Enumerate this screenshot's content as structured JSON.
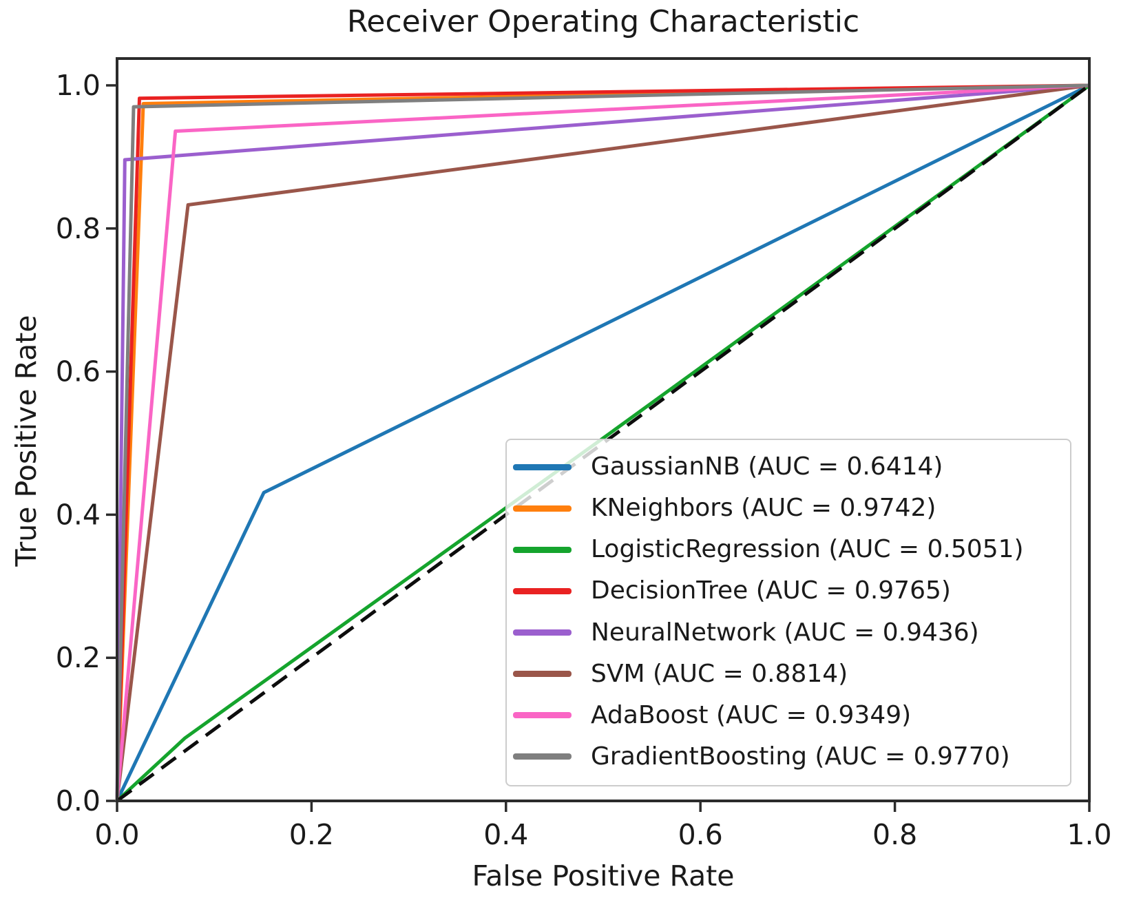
{
  "chart_data": {
    "type": "line",
    "title": "Receiver Operating Characteristic",
    "xlabel": "False Positive Rate",
    "ylabel": "True Positive Rate",
    "xlim": [
      0.0,
      1.0
    ],
    "ylim": [
      0.0,
      1.0375
    ],
    "x_tick_labels": [
      "0.0",
      "0.2",
      "0.4",
      "0.6",
      "0.8",
      "1.0"
    ],
    "y_tick_labels": [
      "0.0",
      "0.2",
      "0.4",
      "0.6",
      "0.8",
      "1.0"
    ],
    "grid": false,
    "legend_position": "lower right inside plot",
    "series": [
      {
        "name": "GaussianNB",
        "auc": 0.6414,
        "legend_label": "GaussianNB (AUC = 0.6414)",
        "color": "#1f77b4",
        "points": [
          [
            0.0,
            0.0
          ],
          [
            0.151,
            0.431
          ],
          [
            1.0,
            1.0
          ]
        ]
      },
      {
        "name": "KNeighbors",
        "auc": 0.9742,
        "legend_label": "KNeighbors (AUC = 0.9742)",
        "color": "#ff7f0e",
        "points": [
          [
            0.0,
            0.0
          ],
          [
            0.027,
            0.9745
          ],
          [
            1.0,
            1.0
          ]
        ]
      },
      {
        "name": "LogisticRegression",
        "auc": 0.5051,
        "legend_label": "LogisticRegression (AUC = 0.5051)",
        "color": "#15a42d",
        "points": [
          [
            0.0,
            0.0
          ],
          [
            0.07,
            0.088
          ],
          [
            0.5,
            0.507
          ],
          [
            1.0,
            1.0
          ]
        ]
      },
      {
        "name": "DecisionTree",
        "auc": 0.9765,
        "legend_label": "DecisionTree (AUC = 0.9765)",
        "color": "#e92222",
        "points": [
          [
            0.0,
            0.0
          ],
          [
            0.023,
            0.982
          ],
          [
            1.0,
            1.0
          ]
        ]
      },
      {
        "name": "NeuralNetwork",
        "auc": 0.9436,
        "legend_label": "NeuralNetwork (AUC = 0.9436)",
        "color": "#9b5fce",
        "points": [
          [
            0.0,
            0.0
          ],
          [
            0.008,
            0.896
          ],
          [
            1.0,
            1.0
          ]
        ]
      },
      {
        "name": "SVM",
        "auc": 0.8814,
        "legend_label": "SVM (AUC = 0.8814)",
        "color": "#9a564a",
        "points": [
          [
            0.0,
            0.0
          ],
          [
            0.073,
            0.833
          ],
          [
            1.0,
            1.0
          ]
        ]
      },
      {
        "name": "AdaBoost",
        "auc": 0.9349,
        "legend_label": "AdaBoost (AUC = 0.9349)",
        "color": "#fa65c5",
        "points": [
          [
            0.0,
            0.0
          ],
          [
            0.06,
            0.936
          ],
          [
            1.0,
            1.0
          ]
        ]
      },
      {
        "name": "GradientBoosting",
        "auc": 0.977,
        "legend_label": "GradientBoosting (AUC = 0.9770)",
        "color": "#7f7f7f",
        "points": [
          [
            0.0,
            0.0
          ],
          [
            0.017,
            0.97
          ],
          [
            1.0,
            1.0
          ]
        ]
      }
    ],
    "reference_line": {
      "name": "chance-diagonal",
      "style": "dashed",
      "color": "#0d0d0d",
      "points": [
        [
          0.0,
          0.0
        ],
        [
          1.0,
          1.0
        ]
      ]
    }
  }
}
